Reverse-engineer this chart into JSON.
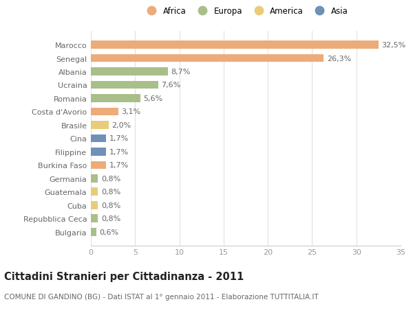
{
  "categories": [
    "Marocco",
    "Senegal",
    "Albania",
    "Ucraina",
    "Romania",
    "Costa d'Avorio",
    "Brasile",
    "Cina",
    "Filippine",
    "Burkina Faso",
    "Germania",
    "Guatemala",
    "Cuba",
    "Repubblica Ceca",
    "Bulgaria"
  ],
  "values": [
    32.5,
    26.3,
    8.7,
    7.6,
    5.6,
    3.1,
    2.0,
    1.7,
    1.7,
    1.7,
    0.8,
    0.8,
    0.8,
    0.8,
    0.6
  ],
  "labels": [
    "32,5%",
    "26,3%",
    "8,7%",
    "7,6%",
    "5,6%",
    "3,1%",
    "2,0%",
    "1,7%",
    "1,7%",
    "1,7%",
    "0,8%",
    "0,8%",
    "0,8%",
    "0,8%",
    "0,6%"
  ],
  "continents": [
    "Africa",
    "Africa",
    "Europa",
    "Europa",
    "Europa",
    "Africa",
    "America",
    "Asia",
    "Asia",
    "Africa",
    "Europa",
    "America",
    "America",
    "Europa",
    "Europa"
  ],
  "continent_colors": {
    "Africa": "#EDAB7A",
    "Europa": "#A8BF8A",
    "America": "#E8CC7A",
    "Asia": "#7090B8"
  },
  "legend_order": [
    "Africa",
    "Europa",
    "America",
    "Asia"
  ],
  "title": "Cittadini Stranieri per Cittadinanza - 2011",
  "subtitle": "COMUNE DI GANDINO (BG) - Dati ISTAT al 1° gennaio 2011 - Elaborazione TUTTITALIA.IT",
  "xlim": [
    0,
    35
  ],
  "xticks": [
    0,
    5,
    10,
    15,
    20,
    25,
    30,
    35
  ],
  "background_color": "#ffffff",
  "grid_color": "#e0e0e0",
  "bar_height": 0.6,
  "label_fontsize": 8,
  "tick_fontsize": 8,
  "ytick_fontsize": 8,
  "title_fontsize": 10.5,
  "subtitle_fontsize": 7.5
}
